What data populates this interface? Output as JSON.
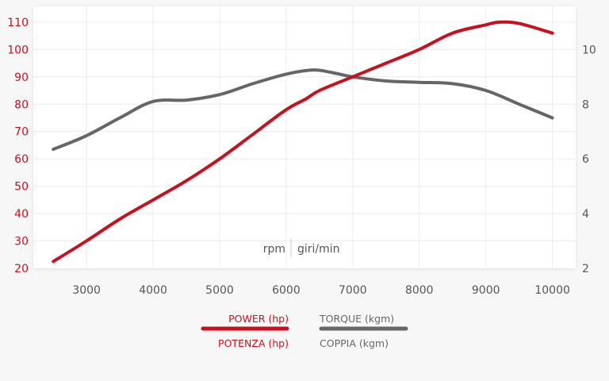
{
  "chart_data": {
    "type": "line",
    "xlabel": "rpm",
    "xlabel_alt": "giri/min",
    "x_ticks": [
      3000,
      4000,
      5000,
      6000,
      7000,
      8000,
      9000,
      10000
    ],
    "xlim": [
      2200,
      10350
    ],
    "y_left": {
      "ticks": [
        20,
        30,
        40,
        50,
        60,
        70,
        80,
        90,
        100,
        110
      ],
      "ylim": [
        20,
        112
      ],
      "color": "#c8101e"
    },
    "y_right": {
      "ticks": [
        2,
        4,
        6,
        8,
        10
      ],
      "ylim": [
        2,
        11.2
      ],
      "color": "#555555"
    },
    "grid": true,
    "series": [
      {
        "name": "POWER (hp)",
        "name_alt": "POTENZA (hp)",
        "axis": "left",
        "color": "#c8101e",
        "x": [
          2500,
          3000,
          3500,
          4000,
          4500,
          5000,
          5500,
          6000,
          6300,
          6500,
          7000,
          7500,
          8000,
          8500,
          9000,
          9200,
          9500,
          10000
        ],
        "y": [
          22.5,
          30,
          38,
          45,
          52,
          60,
          69,
          78,
          82,
          85,
          90,
          95,
          100,
          106,
          109,
          110,
          109.5,
          106
        ]
      },
      {
        "name": "TORQUE (kgm)",
        "name_alt": "COPPIA (kgm)",
        "axis": "right",
        "color": "#666666",
        "x": [
          2500,
          3000,
          3500,
          4000,
          4500,
          5000,
          5500,
          6000,
          6400,
          6700,
          7000,
          7500,
          8000,
          8500,
          9000,
          9500,
          10000
        ],
        "y": [
          6.35,
          6.85,
          7.5,
          8.1,
          8.15,
          8.35,
          8.75,
          9.1,
          9.25,
          9.15,
          9.0,
          8.85,
          8.8,
          8.75,
          8.5,
          8.0,
          7.5
        ]
      }
    ]
  }
}
